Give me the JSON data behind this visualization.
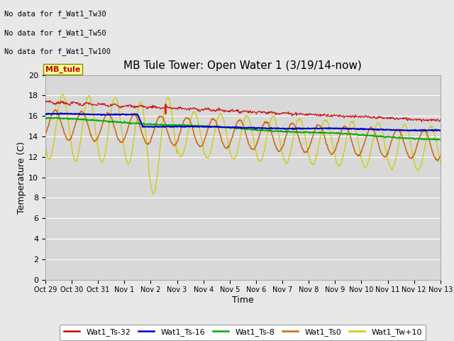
{
  "title": "MB Tule Tower: Open Water 1 (3/19/14-now)",
  "xlabel": "Time",
  "ylabel": "Temperature (C)",
  "ylim": [
    0,
    20
  ],
  "yticks": [
    0,
    2,
    4,
    6,
    8,
    10,
    12,
    14,
    16,
    18,
    20
  ],
  "xtick_labels": [
    "Oct 29",
    "Oct 30",
    "Oct 31",
    "Nov 1",
    "Nov 2",
    "Nov 3",
    "Nov 4",
    "Nov 5",
    "Nov 6",
    "Nov 7",
    "Nov 8",
    "Nov 9",
    "Nov 10",
    "Nov 11",
    "Nov 12",
    "Nov 13"
  ],
  "no_data_texts": [
    "No data for f_Wat1_Tw30",
    "No data for f_Wat1_Tw50",
    "No data for f_Wat1_Tw100"
  ],
  "mb_tule_label": "MB_tule",
  "legend_entries": [
    {
      "label": "Wat1_Ts-32",
      "color": "#cc0000"
    },
    {
      "label": "Wat1_Ts-16",
      "color": "#0000cc"
    },
    {
      "label": "Wat1_Ts-8",
      "color": "#00aa00"
    },
    {
      "label": "Wat1_Ts0",
      "color": "#cc6600"
    },
    {
      "label": "Wat1_Tw+10",
      "color": "#cccc00"
    }
  ],
  "fig_facecolor": "#e8e8e8",
  "plot_facecolor": "#d8d8d8",
  "grid_color": "#ffffff",
  "title_fontsize": 11,
  "axis_fontsize": 9,
  "tick_fontsize": 7,
  "legend_fontsize": 8
}
